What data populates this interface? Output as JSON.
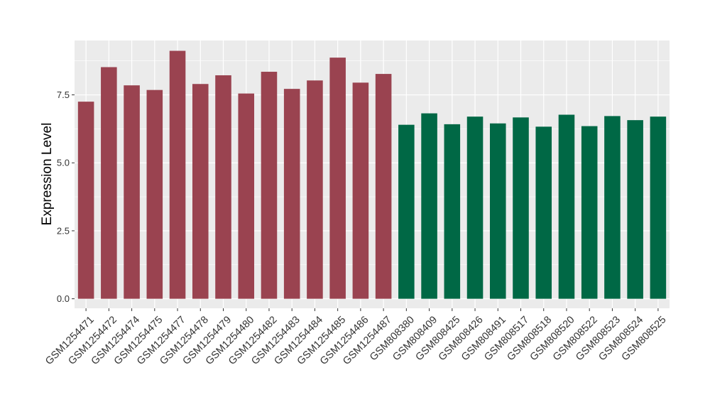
{
  "chart_data": {
    "type": "bar",
    "title": "",
    "xlabel": "",
    "ylabel": "Expression Level",
    "ylim": [
      -0.35,
      9.5
    ],
    "yticks": [
      0.0,
      2.5,
      5.0,
      7.5
    ],
    "ytick_labels": [
      "0.0",
      "2.5",
      "5.0",
      "7.5"
    ],
    "grid": true,
    "legend": "none",
    "colors": {
      "group1": "#9A4350",
      "group2": "#006845",
      "panel": "#EBEBEB",
      "grid": "#FFFFFF"
    },
    "categories": [
      "GSM1254471",
      "GSM1254472",
      "GSM1254474",
      "GSM1254475",
      "GSM1254477",
      "GSM1254478",
      "GSM1254479",
      "GSM1254480",
      "GSM1254482",
      "GSM1254483",
      "GSM1254484",
      "GSM1254485",
      "GSM1254486",
      "GSM1254487",
      "GSM808380",
      "GSM808409",
      "GSM808425",
      "GSM808426",
      "GSM808491",
      "GSM808517",
      "GSM808518",
      "GSM808520",
      "GSM808522",
      "GSM808523",
      "GSM808524",
      "GSM808525"
    ],
    "values": [
      7.25,
      8.52,
      7.85,
      7.68,
      9.12,
      7.9,
      8.22,
      7.55,
      8.35,
      7.72,
      8.03,
      8.87,
      7.95,
      8.27,
      6.4,
      6.82,
      6.42,
      6.7,
      6.45,
      6.67,
      6.33,
      6.77,
      6.35,
      6.72,
      6.57,
      6.7
    ],
    "bar_groups": [
      "group1",
      "group1",
      "group1",
      "group1",
      "group1",
      "group1",
      "group1",
      "group1",
      "group1",
      "group1",
      "group1",
      "group1",
      "group1",
      "group1",
      "group2",
      "group2",
      "group2",
      "group2",
      "group2",
      "group2",
      "group2",
      "group2",
      "group2",
      "group2",
      "group2",
      "group2"
    ]
  }
}
